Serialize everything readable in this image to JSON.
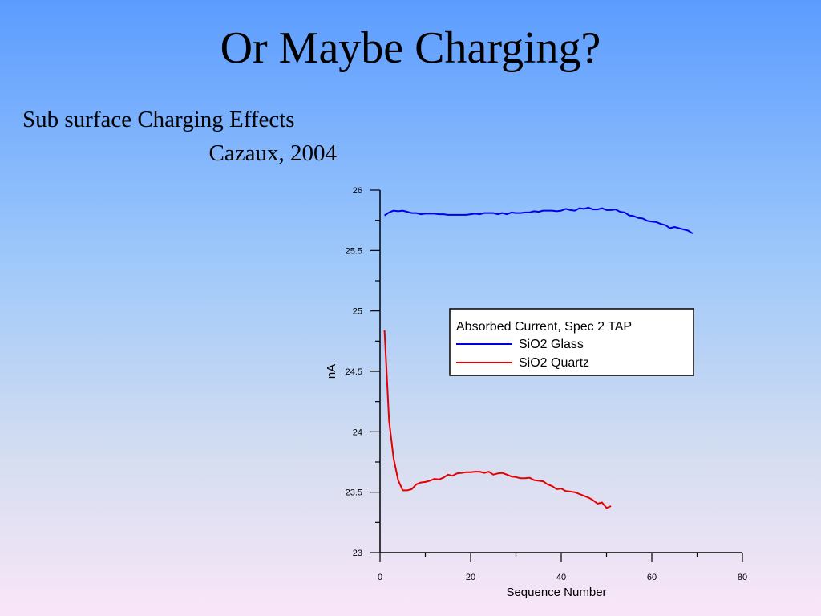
{
  "slide": {
    "title": "Or Maybe Charging?",
    "subtitle_line1": "Sub surface Charging Effects",
    "subtitle_line2": "Cazaux, 2004"
  },
  "chart_data": {
    "type": "line",
    "title": "",
    "xlabel": "Sequence Number",
    "ylabel": "nA",
    "xlim": [
      0,
      80
    ],
    "ylim": [
      23,
      26
    ],
    "x_ticks": [
      0,
      20,
      40,
      60,
      80
    ],
    "y_ticks": [
      23,
      23.5,
      24,
      24.5,
      25,
      25.5,
      26
    ],
    "legend_title": "Absorbed Current, Spec 2 TAP",
    "legend_position": "center-right",
    "grid": false,
    "series": [
      {
        "name": "SiO2 Glass",
        "color": "#0000e6",
        "x": [
          1,
          2,
          3,
          4,
          5,
          6,
          7,
          8,
          9,
          10,
          11,
          12,
          13,
          14,
          15,
          16,
          17,
          18,
          19,
          20,
          21,
          22,
          23,
          24,
          25,
          26,
          27,
          28,
          29,
          30,
          31,
          32,
          33,
          34,
          35,
          36,
          37,
          38,
          39,
          40,
          41,
          42,
          43,
          44,
          45,
          46,
          47,
          48,
          49,
          50,
          51,
          52,
          53,
          54,
          55,
          56,
          57,
          58,
          59,
          60,
          61,
          62,
          63,
          64,
          65,
          66,
          67,
          68,
          69
        ],
        "y": [
          25.79,
          25.815,
          25.83,
          25.825,
          25.83,
          25.82,
          25.81,
          25.81,
          25.8,
          25.805,
          25.805,
          25.805,
          25.8,
          25.8,
          25.795,
          25.795,
          25.795,
          25.795,
          25.795,
          25.8,
          25.805,
          25.8,
          25.81,
          25.81,
          25.81,
          25.8,
          25.81,
          25.8,
          25.815,
          25.81,
          25.81,
          25.815,
          25.815,
          25.825,
          25.82,
          25.83,
          25.83,
          25.83,
          25.825,
          25.83,
          25.845,
          25.835,
          25.83,
          25.85,
          25.845,
          25.855,
          25.84,
          25.84,
          25.85,
          25.835,
          25.835,
          25.84,
          25.82,
          25.815,
          25.79,
          25.785,
          25.77,
          25.765,
          25.745,
          25.74,
          25.735,
          25.72,
          25.71,
          25.685,
          25.695,
          25.685,
          25.675,
          25.665,
          25.64
        ]
      },
      {
        "name": "SiO2 Quartz",
        "color": "#e60000",
        "x": [
          1,
          2,
          3,
          4,
          5,
          6,
          7,
          8,
          9,
          10,
          11,
          12,
          13,
          14,
          15,
          16,
          17,
          18,
          19,
          20,
          21,
          22,
          23,
          24,
          25,
          26,
          27,
          28,
          29,
          30,
          31,
          32,
          33,
          34,
          35,
          36,
          37,
          38,
          39,
          40,
          41,
          42,
          43,
          44,
          45,
          46,
          47,
          48,
          49,
          50,
          51
        ],
        "y": [
          24.84,
          24.09,
          23.78,
          23.6,
          23.515,
          23.515,
          23.525,
          23.565,
          23.58,
          23.585,
          23.595,
          23.61,
          23.605,
          23.62,
          23.645,
          23.635,
          23.655,
          23.66,
          23.665,
          23.665,
          23.67,
          23.67,
          23.66,
          23.67,
          23.645,
          23.655,
          23.66,
          23.645,
          23.63,
          23.625,
          23.615,
          23.615,
          23.62,
          23.6,
          23.595,
          23.59,
          23.565,
          23.55,
          23.525,
          23.53,
          23.51,
          23.505,
          23.5,
          23.485,
          23.47,
          23.455,
          23.435,
          23.405,
          23.415,
          23.37,
          23.385
        ]
      }
    ]
  }
}
